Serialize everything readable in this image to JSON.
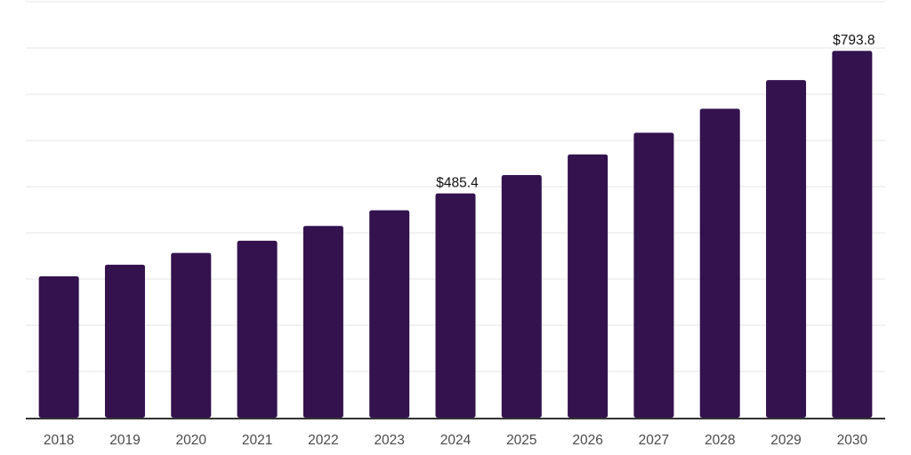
{
  "chart_data": {
    "type": "bar",
    "title": "",
    "xlabel": "",
    "ylabel": "",
    "categories": [
      "2018",
      "2019",
      "2020",
      "2021",
      "2022",
      "2023",
      "2024",
      "2025",
      "2026",
      "2027",
      "2028",
      "2029",
      "2030"
    ],
    "values": [
      306.1,
      331.1,
      356.6,
      382.9,
      415.0,
      448.8,
      485.4,
      525.0,
      569.7,
      616.6,
      668.4,
      730.5,
      793.8
    ],
    "data_labels": [
      {
        "category": "2024",
        "text": "$485.4"
      },
      {
        "category": "2030",
        "text": "$793.8"
      }
    ],
    "ylim": [
      0,
      900
    ],
    "gridline_interval": 100,
    "grid": true,
    "y_axis_labels_visible": false,
    "legend_position": "none",
    "colors": {
      "bar": "#33124E",
      "gridline": "#ededed",
      "axis_line": "#333333",
      "tick_label": "#4a4a4a",
      "value_label": "#111111",
      "background": "#ffffff"
    }
  }
}
